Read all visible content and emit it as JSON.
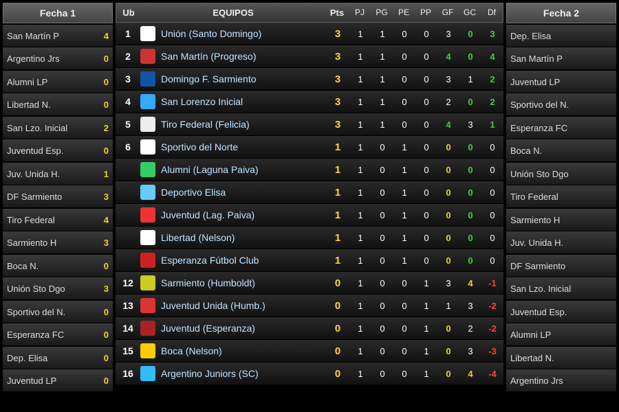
{
  "colors": {
    "bg": "#000000",
    "row_light": "#3a3a3a",
    "row_dark": "#1a1a1a",
    "header_light": "#666666",
    "header_dark": "#444444",
    "text": "#eeeeee",
    "team_link": "#bfe6ff",
    "yellow": "#f0d030",
    "green": "#3bd23b",
    "red": "#ff4040"
  },
  "fecha1": {
    "title": "Fecha 1",
    "matches": [
      {
        "home": "San Martín P",
        "hs": 4,
        "hcls": "score-yellow",
        "away": "Argentino Jrs",
        "as": 0,
        "acls": "score-yellow"
      },
      {
        "home": "Alumni LP",
        "hs": 0,
        "hcls": "score-yellow",
        "away": "Libertad N.",
        "as": 0,
        "acls": "score-yellow"
      },
      {
        "home": "San Lzo. Inicial",
        "hs": 2,
        "hcls": "score-yellow",
        "away": "Juventud Esp.",
        "as": 0,
        "acls": "score-yellow"
      },
      {
        "home": "Juv. Unida H.",
        "hs": 1,
        "hcls": "score-yellow",
        "away": "DF Sarmiento",
        "as": 3,
        "acls": "score-yellow"
      },
      {
        "home": "Tiro Federal",
        "hs": 4,
        "hcls": "score-yellow",
        "away": "Sarmiento H",
        "as": 3,
        "acls": "score-yellow"
      },
      {
        "home": "Boca N.",
        "hs": 0,
        "hcls": "score-yellow",
        "away": "Unión Sto Dgo",
        "as": 3,
        "acls": "score-yellow"
      },
      {
        "home": "Sportivo del N.",
        "hs": 0,
        "hcls": "score-yellow",
        "away": "Esperanza FC",
        "as": 0,
        "acls": "score-yellow"
      },
      {
        "home": "Dep. Elisa",
        "hs": 0,
        "hcls": "score-yellow",
        "away": "Juventud LP",
        "as": 0,
        "acls": "score-yellow"
      }
    ]
  },
  "fecha2": {
    "title": "Fecha 2",
    "matches": [
      {
        "home": "Dep. Elisa",
        "away": "San Martín P"
      },
      {
        "home": "Juventud LP",
        "away": "Sportivo del N."
      },
      {
        "home": "Esperanza FC",
        "away": "Boca N."
      },
      {
        "home": "Unión Sto Dgo",
        "away": "Tiro Federal"
      },
      {
        "home": "Sarmiento H",
        "away": "Juv. Unida H."
      },
      {
        "home": "DF Sarmiento",
        "away": "San Lzo. Inicial"
      },
      {
        "home": "Juventud Esp.",
        "away": "Alumni LP"
      },
      {
        "home": "Libertad N.",
        "away": "Argentino Jrs"
      }
    ]
  },
  "standings": {
    "headers": {
      "ub": "Ub",
      "team": "EQUIPOS",
      "pts": "Pts",
      "pj": "PJ",
      "pg": "PG",
      "pe": "PE",
      "pp": "PP",
      "gf": "GF",
      "gc": "GC",
      "df": "Df"
    },
    "rows": [
      {
        "ub": "1",
        "badge": "#fff",
        "team": "Unión (Santo Domingo)",
        "pts": 3,
        "pj": 1,
        "pg": 1,
        "pe": 0,
        "pp": 0,
        "gf": 3,
        "gfCls": "stat-white",
        "gc": 0,
        "gcCls": "stat-green",
        "df": 3,
        "dfCls": "stat-green"
      },
      {
        "ub": "2",
        "badge": "#c33",
        "team": "San Martín (Progreso)",
        "pts": 3,
        "pj": 1,
        "pg": 1,
        "pe": 0,
        "pp": 0,
        "gf": 4,
        "gfCls": "stat-green",
        "gc": 0,
        "gcCls": "stat-green",
        "df": 4,
        "dfCls": "stat-green"
      },
      {
        "ub": "3",
        "badge": "#15a",
        "team": "Domingo F. Sarmiento",
        "pts": 3,
        "pj": 1,
        "pg": 1,
        "pe": 0,
        "pp": 0,
        "gf": 3,
        "gfCls": "stat-white",
        "gc": 1,
        "gcCls": "stat-white",
        "df": 2,
        "dfCls": "stat-green"
      },
      {
        "ub": "4",
        "badge": "#3af",
        "team": "San Lorenzo Inicial",
        "pts": 3,
        "pj": 1,
        "pg": 1,
        "pe": 0,
        "pp": 0,
        "gf": 2,
        "gfCls": "stat-white",
        "gc": 0,
        "gcCls": "stat-green",
        "df": 2,
        "dfCls": "stat-green"
      },
      {
        "ub": "5",
        "badge": "#eee",
        "team": "Tiro Federal (Felicia)",
        "pts": 3,
        "pj": 1,
        "pg": 1,
        "pe": 0,
        "pp": 0,
        "gf": 4,
        "gfCls": "stat-green",
        "gc": 3,
        "gcCls": "stat-white",
        "df": 1,
        "dfCls": "stat-green"
      },
      {
        "ub": "6",
        "badge": "#fff",
        "team": "Sportivo del Norte",
        "pts": 1,
        "pj": 1,
        "pg": 0,
        "pe": 1,
        "pp": 0,
        "gf": 0,
        "gfCls": "stat-yellow",
        "gc": 0,
        "gcCls": "stat-green",
        "df": 0,
        "dfCls": "stat-white"
      },
      {
        "ub": "",
        "badge": "#3c6",
        "team": "Alumni (Laguna Paiva)",
        "pts": 1,
        "pj": 1,
        "pg": 0,
        "pe": 1,
        "pp": 0,
        "gf": 0,
        "gfCls": "stat-yellow",
        "gc": 0,
        "gcCls": "stat-green",
        "df": 0,
        "dfCls": "stat-white"
      },
      {
        "ub": "",
        "badge": "#6cf",
        "team": "Deportivo Elisa",
        "pts": 1,
        "pj": 1,
        "pg": 0,
        "pe": 1,
        "pp": 0,
        "gf": 0,
        "gfCls": "stat-yellow",
        "gc": 0,
        "gcCls": "stat-green",
        "df": 0,
        "dfCls": "stat-white"
      },
      {
        "ub": "",
        "badge": "#e33",
        "team": "Juventud (Lag. Paiva)",
        "pts": 1,
        "pj": 1,
        "pg": 0,
        "pe": 1,
        "pp": 0,
        "gf": 0,
        "gfCls": "stat-yellow",
        "gc": 0,
        "gcCls": "stat-green",
        "df": 0,
        "dfCls": "stat-white"
      },
      {
        "ub": "",
        "badge": "#fff",
        "team": "Libertad (Nelson)",
        "pts": 1,
        "pj": 1,
        "pg": 0,
        "pe": 1,
        "pp": 0,
        "gf": 0,
        "gfCls": "stat-yellow",
        "gc": 0,
        "gcCls": "stat-green",
        "df": 0,
        "dfCls": "stat-white"
      },
      {
        "ub": "",
        "badge": "#c22",
        "team": "Esperanza Fútbol Club",
        "pts": 1,
        "pj": 1,
        "pg": 0,
        "pe": 1,
        "pp": 0,
        "gf": 0,
        "gfCls": "stat-yellow",
        "gc": 0,
        "gcCls": "stat-green",
        "df": 0,
        "dfCls": "stat-white"
      },
      {
        "ub": "12",
        "badge": "#cc2",
        "team": "Sarmiento (Humboldt)",
        "pts": 0,
        "pj": 1,
        "pg": 0,
        "pe": 0,
        "pp": 1,
        "gf": 3,
        "gfCls": "stat-white",
        "gc": 4,
        "gcCls": "stat-yellow",
        "df": -1,
        "dfCls": "stat-red"
      },
      {
        "ub": "13",
        "badge": "#d33",
        "team": "Juventud Unida (Humb.)",
        "pts": 0,
        "pj": 1,
        "pg": 0,
        "pe": 0,
        "pp": 1,
        "gf": 1,
        "gfCls": "stat-white",
        "gc": 3,
        "gcCls": "stat-white",
        "df": -2,
        "dfCls": "stat-red"
      },
      {
        "ub": "14",
        "badge": "#a22",
        "team": "Juventud (Esperanza)",
        "pts": 0,
        "pj": 1,
        "pg": 0,
        "pe": 0,
        "pp": 1,
        "gf": 0,
        "gfCls": "stat-yellow",
        "gc": 2,
        "gcCls": "stat-white",
        "df": -2,
        "dfCls": "stat-red"
      },
      {
        "ub": "15",
        "badge": "#fc0",
        "team": "Boca (Nelson)",
        "pts": 0,
        "pj": 1,
        "pg": 0,
        "pe": 0,
        "pp": 1,
        "gf": 0,
        "gfCls": "stat-yellow",
        "gc": 3,
        "gcCls": "stat-white",
        "df": -3,
        "dfCls": "stat-red"
      },
      {
        "ub": "16",
        "badge": "#3bf",
        "team": "Argentino Juniors (SC)",
        "pts": 0,
        "pj": 1,
        "pg": 0,
        "pe": 0,
        "pp": 1,
        "gf": 0,
        "gfCls": "stat-yellow",
        "gc": 4,
        "gcCls": "stat-yellow",
        "df": -4,
        "dfCls": "stat-red"
      }
    ]
  }
}
